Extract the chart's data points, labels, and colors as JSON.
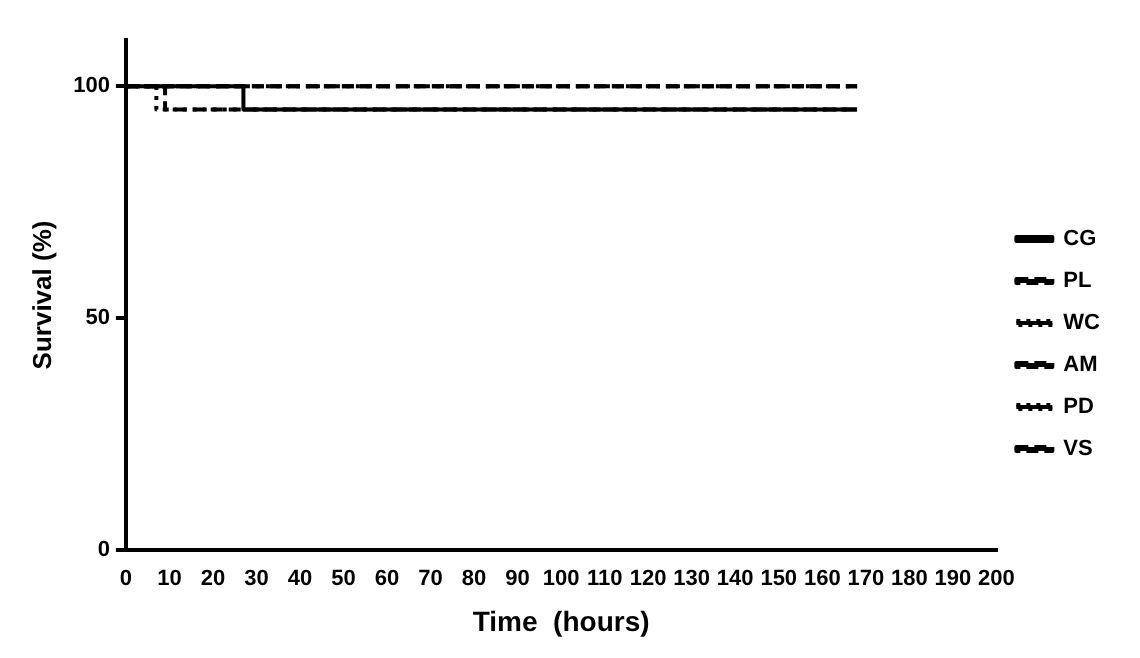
{
  "chart_data": {
    "type": "step",
    "xlabel": "Time  (hours)",
    "ylabel": "Survival (%)",
    "xlim": [
      0,
      200
    ],
    "xticks": [
      0,
      10,
      20,
      30,
      40,
      50,
      60,
      70,
      80,
      90,
      100,
      110,
      120,
      130,
      140,
      150,
      160,
      170,
      180,
      190,
      200
    ],
    "ylim": [
      0,
      110
    ],
    "yticks": [
      0,
      50,
      100
    ],
    "grid": false,
    "legend": "right",
    "marker": "none",
    "series": [
      {
        "name": "CG",
        "color": "#000000",
        "line_style": "solid",
        "x": [
          0,
          27,
          168
        ],
        "values": [
          100,
          95,
          95
        ]
      },
      {
        "name": "PL",
        "color": "#000000",
        "line_style": "dashed",
        "x": [
          0,
          9,
          168
        ],
        "values": [
          100,
          95,
          95
        ]
      },
      {
        "name": "WC",
        "color": "#000000",
        "line_style": "dotted",
        "x": [
          0,
          7,
          168
        ],
        "values": [
          100,
          95,
          95
        ]
      },
      {
        "name": "AM",
        "color": "#000000",
        "line_style": "dashed",
        "x": [
          0,
          168
        ],
        "values": [
          100,
          100
        ]
      },
      {
        "name": "PD",
        "color": "#000000",
        "line_style": "dotted",
        "x": [
          0,
          168
        ],
        "values": [
          100,
          100
        ]
      },
      {
        "name": "VS",
        "color": "#000000",
        "line_style": "dashed",
        "x": [
          0,
          168
        ],
        "values": [
          100,
          100
        ]
      }
    ]
  }
}
